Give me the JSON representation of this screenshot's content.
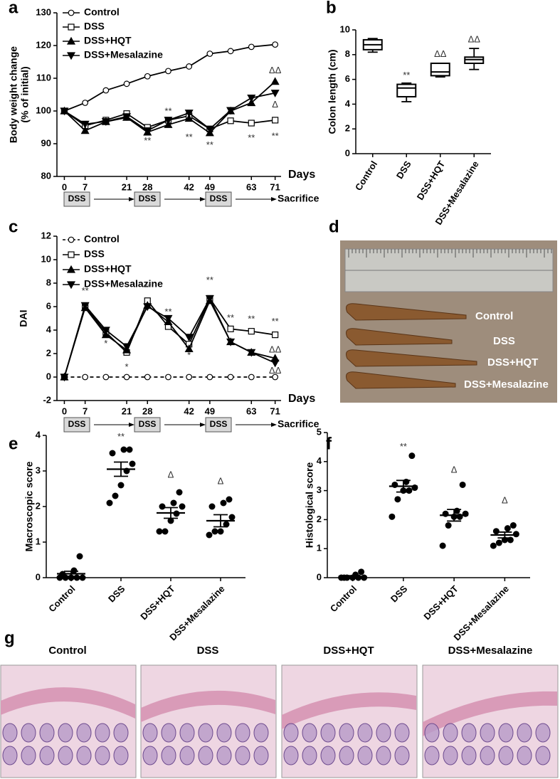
{
  "chart_data": [
    {
      "panel_label": "a",
      "type": "line",
      "ylabel": [
        "Body weight change",
        "(% of initial)"
      ],
      "xlabel": "Days",
      "x": [
        0,
        7,
        14,
        21,
        28,
        35,
        42,
        49,
        56,
        63,
        71
      ],
      "xlim": [
        -2.5,
        73
      ],
      "xticks": [
        0,
        7,
        21,
        28,
        42,
        49,
        63,
        71
      ],
      "ylim": [
        80,
        130
      ],
      "yticks": [
        80,
        90,
        100,
        110,
        120,
        130
      ],
      "series": [
        {
          "name": "Control",
          "color": "#000000",
          "marker": "circle-open",
          "values": [
            100,
            102.5,
            106.3,
            108.3,
            110.6,
            112.2,
            113.6,
            117.5,
            118.3,
            119.6,
            120.3
          ]
        },
        {
          "name": "DSS",
          "color": "#000000",
          "marker": "square-open",
          "values": [
            100,
            95.5,
            97.2,
            99.2,
            95,
            97.2,
            98.5,
            94.5,
            97,
            96.3,
            97.2
          ]
        },
        {
          "name": "DSS+HQT",
          "color": "#000000",
          "marker": "triangle-up",
          "values": [
            100,
            94,
            96.7,
            98,
            93.5,
            95.8,
            97.7,
            93.3,
            100,
            102.5,
            109
          ]
        },
        {
          "name": "DSS+Mesalazine",
          "color": "#000000",
          "marker": "triangle-down",
          "values": [
            100,
            96,
            96.8,
            98.3,
            94,
            97.2,
            99.4,
            94.5,
            100.2,
            104,
            105.5
          ]
        }
      ],
      "annotations": [
        {
          "text": "**",
          "x": 28,
          "y": 90.8
        },
        {
          "text": "**",
          "x": 35,
          "y": 99.8
        },
        {
          "text": "**",
          "x": 42,
          "y": 91.8
        },
        {
          "text": "**",
          "x": 49,
          "y": 89.4
        },
        {
          "text": "**",
          "x": 63,
          "y": 91.6
        },
        {
          "text": "**",
          "x": 71,
          "y": 92.2
        },
        {
          "text": "ΔΔ",
          "x": 71,
          "y": 112.3
        },
        {
          "text": "Δ",
          "x": 71,
          "y": 101.8
        }
      ],
      "timeline": {
        "labels": [
          "DSS",
          "DSS",
          "DSS"
        ],
        "end_label": "Sacrifice"
      }
    },
    {
      "panel_label": "b",
      "type": "box",
      "ylabel": "Colon length (cm)",
      "categories": [
        "Control",
        "DSS",
        "DSS+HQT",
        "DSS+Mesalazine"
      ],
      "ylim": [
        0,
        10
      ],
      "yticks": [
        0,
        2,
        4,
        6,
        8,
        10
      ],
      "boxes": [
        {
          "min": 8.2,
          "q1": 8.4,
          "median": 8.8,
          "q3": 9.2,
          "max": 9.3
        },
        {
          "min": 4.2,
          "q1": 4.6,
          "median": 5.3,
          "q3": 5.6,
          "max": 5.7
        },
        {
          "min": 6.2,
          "q1": 6.3,
          "median": 6.6,
          "q3": 7.3,
          "max": 7.3
        },
        {
          "min": 6.8,
          "q1": 7.3,
          "median": 7.6,
          "q3": 7.8,
          "max": 8.5
        }
      ],
      "annotations": [
        {
          "text": "**",
          "x": "DSS",
          "y": 6.3
        },
        {
          "text": "ΔΔ",
          "x": "DSS+HQT",
          "y": 8.0
        },
        {
          "text": "ΔΔ",
          "x": "DSS+Mesalazine",
          "y": 9.2
        }
      ]
    },
    {
      "panel_label": "c",
      "type": "line",
      "ylabel": [
        "DAI"
      ],
      "xlabel": "Days",
      "x": [
        0,
        7,
        14,
        21,
        28,
        35,
        42,
        49,
        56,
        63,
        71
      ],
      "xlim": [
        -2.5,
        73
      ],
      "xticks": [
        0,
        7,
        21,
        28,
        42,
        49,
        63,
        71
      ],
      "ylim": [
        -2,
        12
      ],
      "yticks": [
        -2,
        0,
        2,
        4,
        6,
        8,
        10,
        12
      ],
      "series": [
        {
          "name": "Control",
          "color": "#000000",
          "marker": "circle-open",
          "dash": true,
          "values": [
            0,
            0,
            0,
            0,
            0,
            0,
            0,
            0,
            0,
            0,
            0
          ]
        },
        {
          "name": "DSS",
          "color": "#000000",
          "marker": "square-open",
          "values": [
            0,
            6,
            3.8,
            2.1,
            6.5,
            4.3,
            2.8,
            6.7,
            4.1,
            3.9,
            3.6
          ]
        },
        {
          "name": "DSS+HQT",
          "color": "#000000",
          "marker": "triangle-up",
          "values": [
            0,
            5.9,
            3.6,
            2.3,
            6.1,
            4.7,
            2.4,
            6.5,
            3.0,
            2.1,
            1.6
          ]
        },
        {
          "name": "DSS+Mesalazine",
          "color": "#000000",
          "marker": "triangle-down",
          "values": [
            0,
            6.1,
            4.0,
            2.6,
            6.0,
            5.0,
            3.4,
            6.7,
            3.0,
            2.1,
            1.2
          ]
        }
      ],
      "annotations": [
        {
          "text": "**",
          "x": 7,
          "y": 7.3
        },
        {
          "text": "*",
          "x": 14,
          "y": 2.8
        },
        {
          "text": "*",
          "x": 21,
          "y": 0.8
        },
        {
          "text": "**",
          "x": 28,
          "y": 7.6
        },
        {
          "text": "**",
          "x": 35,
          "y": 5.5
        },
        {
          "text": "*",
          "x": 42,
          "y": 1.8
        },
        {
          "text": "**",
          "x": 49,
          "y": 8.2
        },
        {
          "text": "**",
          "x": 56,
          "y": 5.0
        },
        {
          "text": "**",
          "x": 63,
          "y": 4.9
        },
        {
          "text": "**",
          "x": 71,
          "y": 4.7
        },
        {
          "text": "ΔΔ",
          "x": 71,
          "y": 2.3
        },
        {
          "text": "ΔΔ",
          "x": 71,
          "y": 0.5
        }
      ],
      "timeline": {
        "labels": [
          "DSS",
          "DSS",
          "DSS"
        ],
        "end_label": "Sacrifice"
      }
    },
    {
      "panel_label": "e",
      "type": "dot",
      "ylabel": "Macroscopic score",
      "categories": [
        "Control",
        "DSS",
        "DSS+HQT",
        "DSS+Mesalazine"
      ],
      "ylim": [
        0,
        4
      ],
      "yticks": [
        0,
        1,
        2,
        3,
        4
      ],
      "groups": [
        {
          "points": [
            0,
            0,
            0,
            0,
            0,
            0.1,
            0.2,
            0.6
          ],
          "mean": 0.11,
          "sem": 0.07
        },
        {
          "points": [
            2.1,
            2.3,
            2.6,
            3.0,
            3.2,
            3.5,
            3.6,
            3.6
          ],
          "mean": 3.05,
          "sem": 0.2
        },
        {
          "points": [
            1.3,
            1.3,
            1.6,
            1.8,
            2.0,
            2.0,
            2.1,
            2.4
          ],
          "mean": 1.82,
          "sem": 0.15
        },
        {
          "points": [
            1.2,
            1.3,
            1.3,
            1.5,
            1.7,
            2.0,
            2.1,
            2.2
          ],
          "mean": 1.6,
          "sem": 0.17
        }
      ],
      "annotations": [
        {
          "text": "**",
          "x": "DSS",
          "y": 3.95
        },
        {
          "text": "Δ",
          "x": "DSS+HQT",
          "y": 2.88
        },
        {
          "text": "Δ",
          "x": "DSS+Mesalazine",
          "y": 2.7
        }
      ]
    },
    {
      "panel_label": "f",
      "type": "dot",
      "ylabel": "Histological  score",
      "categories": [
        "Control",
        "DSS",
        "DSS+HQT",
        "DSS+Mesalazine"
      ],
      "ylim": [
        0,
        5
      ],
      "yticks": [
        0,
        1,
        2,
        3,
        4,
        5
      ],
      "groups": [
        {
          "points": [
            0,
            0,
            0,
            0,
            0,
            0,
            0.1,
            0.2
          ],
          "mean": 0.04,
          "sem": 0.03
        },
        {
          "points": [
            2.1,
            2.7,
            3.0,
            3.0,
            3.1,
            3.2,
            3.3,
            4.2
          ],
          "mean": 3.15,
          "sem": 0.2
        },
        {
          "points": [
            1.1,
            1.8,
            2.1,
            2.1,
            2.2,
            2.2,
            2.3,
            3.2
          ],
          "mean": 2.15,
          "sem": 0.2
        },
        {
          "points": [
            1.1,
            1.2,
            1.3,
            1.3,
            1.5,
            1.6,
            1.7,
            1.8
          ],
          "mean": 1.47,
          "sem": 0.1
        }
      ],
      "annotations": [
        {
          "text": "**",
          "x": "DSS",
          "y": 4.5
        },
        {
          "text": "Δ",
          "x": "DSS+HQT",
          "y": 3.7
        },
        {
          "text": "Δ",
          "x": "DSS+Mesalazine",
          "y": 2.65
        }
      ]
    }
  ],
  "photo_d": {
    "panel_label": "d",
    "labels": [
      "Control",
      "DSS",
      "DSS+HQT",
      "DSS+Mesalazine"
    ]
  },
  "photo_g": {
    "panel_label": "g",
    "titles": [
      "Control",
      "DSS",
      "DSS+HQT",
      "DSS+Mesalazine"
    ]
  }
}
